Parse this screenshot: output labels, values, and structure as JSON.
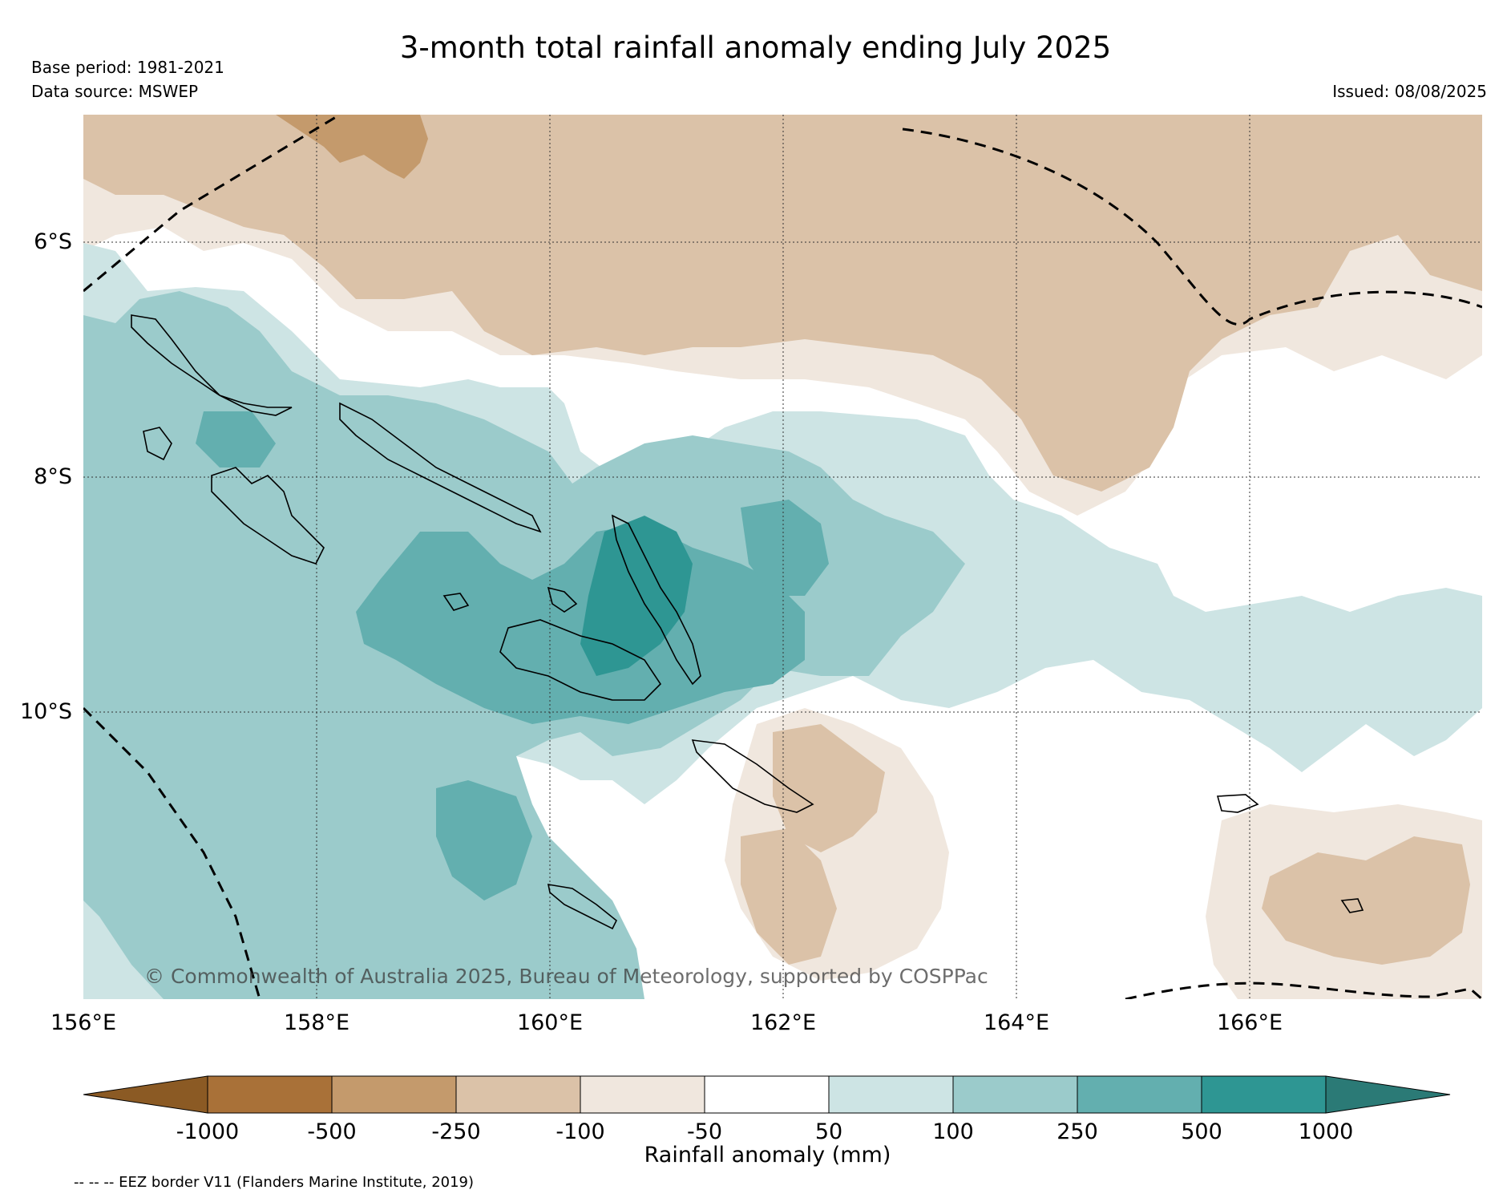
{
  "header": {
    "title": "3-month total rainfall anomaly ending July 2025",
    "base_period": "Base period: 1981-2021",
    "data_source": "Data source: MSWEP",
    "issued": "Issued: 08/08/2025"
  },
  "map": {
    "lat_labels": [
      "6°S",
      "8°S",
      "10°S"
    ],
    "lon_labels": [
      "156°E",
      "158°E",
      "160°E",
      "162°E",
      "164°E",
      "166°E"
    ],
    "copyright": "© Commonwealth of Australia 2025, Bureau of Meteorology, supported by COSPPac",
    "extent": {
      "lon": [
        156,
        168
      ],
      "lat": [
        -4.9,
        -12.5
      ]
    }
  },
  "colorbar": {
    "label": "Rainfall anomaly (mm)",
    "tick_labels": [
      "-1000",
      "-500",
      "-250",
      "-100",
      "-50",
      "50",
      "100",
      "250",
      "500",
      "1000"
    ],
    "colors": {
      "below_-1000": "#8b5a24",
      "-1000_-500": "#a97138",
      "-500_-250": "#c49a6c",
      "-250_-100": "#dbc2a8",
      "-100_-50": "#f0e7de",
      "-50_50": "#ffffff",
      "50_100": "#cde4e4",
      "100_250": "#9bcbcb",
      "250_500": "#63afaf",
      "500_1000": "#2e9693",
      "above_1000": "#2b7a76"
    }
  },
  "footer": {
    "eez_note": "-- -- -- EEZ border V11 (Flanders Marine Institute, 2019)"
  }
}
